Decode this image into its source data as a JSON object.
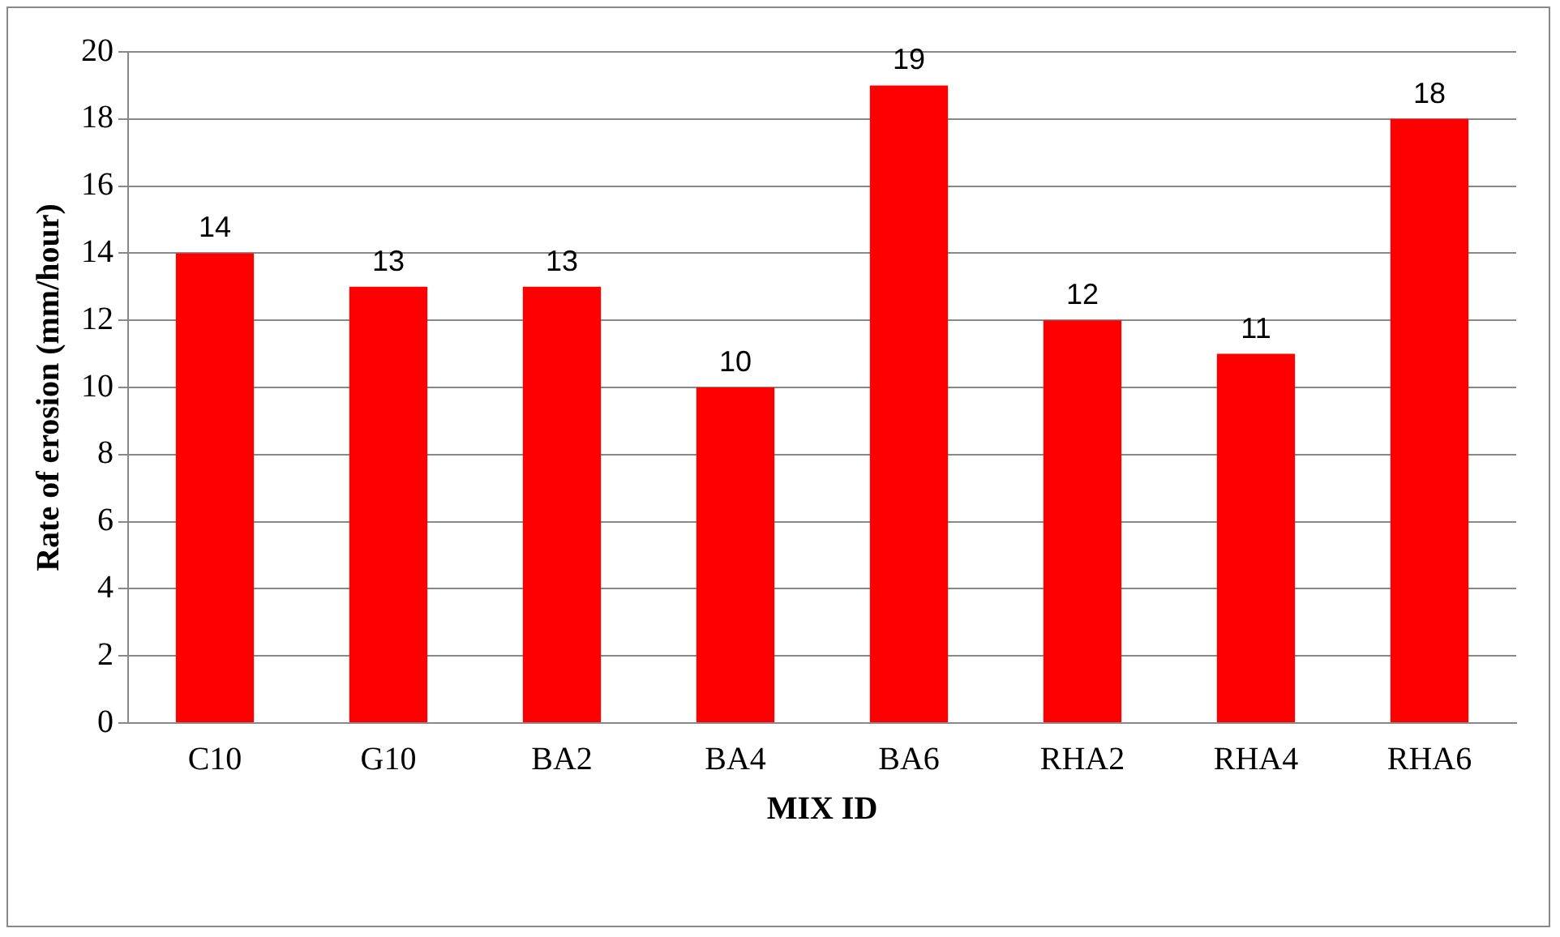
{
  "chart_data": {
    "type": "bar",
    "xlabel": "MIX ID",
    "ylabel": "Rate of erosion (mm/hour)",
    "categories": [
      "C10",
      "G10",
      "BA2",
      "BA4",
      "BA6",
      "RHA2",
      "RHA4",
      "RHA6"
    ],
    "values": [
      14,
      13,
      13,
      10,
      19,
      12,
      11,
      18
    ],
    "color": "#ff0000",
    "ylim": [
      0,
      20
    ],
    "yticks": [
      0,
      2,
      4,
      6,
      8,
      10,
      12,
      14,
      16,
      18,
      20
    ],
    "grid": "y",
    "data_labels": true,
    "legend": false
  }
}
